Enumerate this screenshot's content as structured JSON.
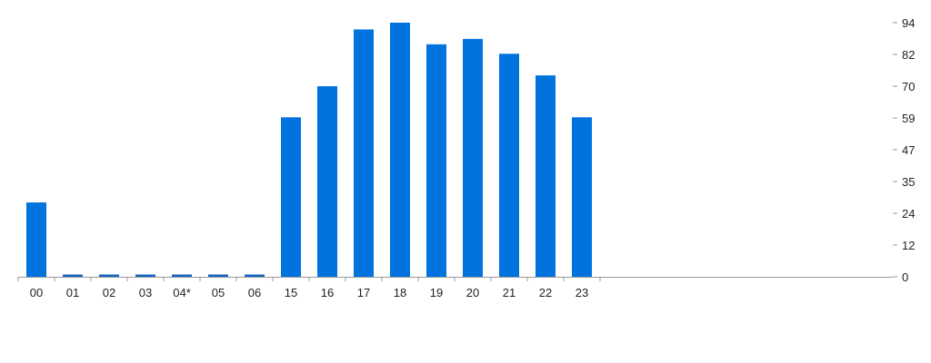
{
  "colors": {
    "bar": "#0073df",
    "bar_outline": "#1565c0",
    "axis": "#999999",
    "text": "#222222"
  },
  "chart_data": {
    "type": "bar",
    "categories": [
      "00",
      "01",
      "02",
      "03",
      "04*",
      "05",
      "06",
      "15",
      "16",
      "17",
      "18",
      "19",
      "20",
      "21",
      "22",
      "23"
    ],
    "values": [
      27.5,
      0.5,
      0.5,
      0.5,
      0.5,
      0.5,
      0.5,
      59,
      70.5,
      91.5,
      94,
      86,
      88,
      82.5,
      74.5,
      59
    ],
    "title": "",
    "xlabel": "",
    "ylabel": "",
    "ylim": [
      0,
      94
    ],
    "yticks": [
      "0",
      "12",
      "24",
      "35",
      "47",
      "59",
      "70",
      "82",
      "94"
    ],
    "y_axis_position": "right",
    "grid": false,
    "legend": "none"
  }
}
